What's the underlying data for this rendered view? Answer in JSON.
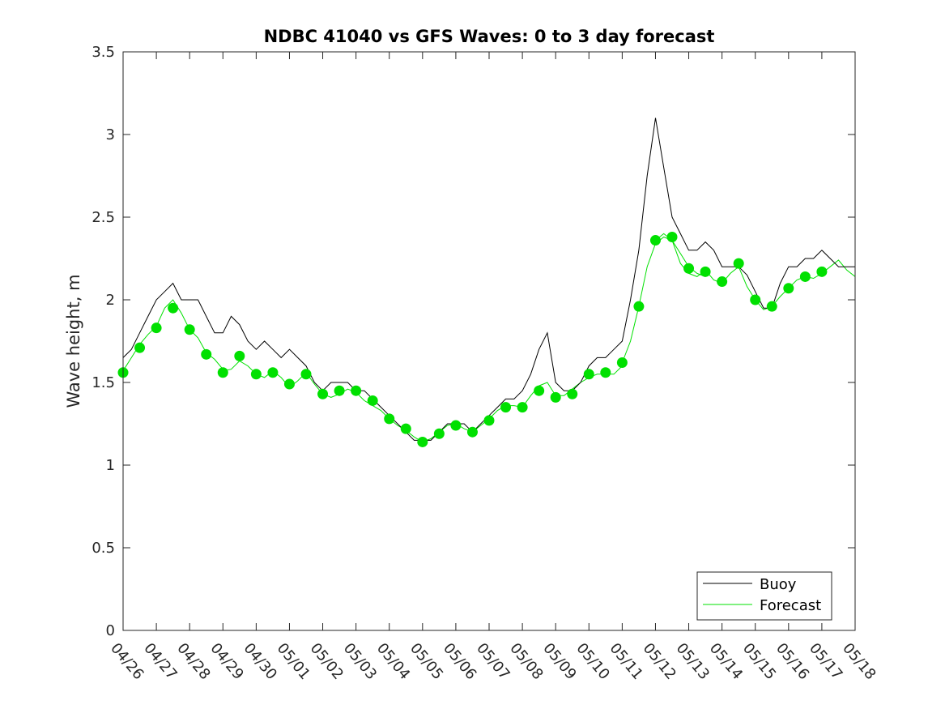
{
  "chart_data": {
    "type": "line",
    "title": "NDBC 41040 vs GFS Waves: 0 to 3 day forecast",
    "xlabel": "",
    "ylabel": "Wave height, m",
    "ylim": [
      0,
      3.5
    ],
    "yticks": [
      0,
      0.5,
      1,
      1.5,
      2,
      2.5,
      3,
      3.5
    ],
    "ytick_labels": [
      "0",
      "0.5",
      "1",
      "1.5",
      "2",
      "2.5",
      "3",
      "3.5"
    ],
    "xlim": [
      0,
      22
    ],
    "xtick_labels": [
      "04/26",
      "04/27",
      "04/28",
      "04/29",
      "04/30",
      "05/01",
      "05/02",
      "05/03",
      "05/04",
      "05/05",
      "05/06",
      "05/07",
      "05/08",
      "05/09",
      "05/10",
      "05/11",
      "05/12",
      "05/13",
      "05/14",
      "05/15",
      "05/16",
      "05/17",
      "05/18"
    ],
    "grid": false,
    "legend_position": "bottom-right",
    "colors": {
      "buoy": "#000000",
      "forecast": "#00e000",
      "axis": "#262626"
    },
    "series": [
      {
        "name": "Buoy",
        "style": "thin-line",
        "x": [
          0.0,
          0.25,
          0.5,
          0.75,
          1.0,
          1.25,
          1.5,
          1.75,
          2.0,
          2.25,
          2.5,
          2.75,
          3.0,
          3.25,
          3.5,
          3.75,
          4.0,
          4.25,
          4.5,
          4.75,
          5.0,
          5.25,
          5.5,
          5.75,
          6.0,
          6.25,
          6.5,
          6.75,
          7.0,
          7.25,
          7.5,
          7.75,
          8.0,
          8.25,
          8.5,
          8.75,
          9.0,
          9.25,
          9.5,
          9.75,
          10.0,
          10.25,
          10.5,
          10.75,
          11.0,
          11.25,
          11.5,
          11.75,
          12.0,
          12.25,
          12.5,
          12.75,
          13.0,
          13.25,
          13.5,
          13.75,
          14.0,
          14.25,
          14.5,
          14.75,
          15.0,
          15.25,
          15.5,
          15.75,
          16.0,
          16.25,
          16.5,
          16.75,
          17.0,
          17.25,
          17.5,
          17.75,
          18.0,
          18.25,
          18.5,
          18.75,
          19.0,
          19.25,
          19.5,
          19.75,
          20.0,
          20.25,
          20.5,
          20.75,
          21.0,
          21.25,
          21.5,
          21.75,
          22.0
        ],
        "values": [
          1.65,
          1.7,
          1.8,
          1.9,
          2.0,
          2.05,
          2.1,
          2.0,
          2.0,
          2.0,
          1.9,
          1.8,
          1.8,
          1.9,
          1.85,
          1.75,
          1.7,
          1.75,
          1.7,
          1.65,
          1.7,
          1.65,
          1.6,
          1.5,
          1.45,
          1.5,
          1.5,
          1.5,
          1.45,
          1.45,
          1.4,
          1.35,
          1.3,
          1.25,
          1.2,
          1.15,
          1.15,
          1.15,
          1.2,
          1.25,
          1.25,
          1.25,
          1.2,
          1.25,
          1.3,
          1.35,
          1.4,
          1.4,
          1.45,
          1.55,
          1.7,
          1.8,
          1.5,
          1.45,
          1.45,
          1.5,
          1.6,
          1.65,
          1.65,
          1.7,
          1.75,
          2.0,
          2.3,
          2.75,
          3.1,
          2.8,
          2.5,
          2.4,
          2.3,
          2.3,
          2.35,
          2.3,
          2.2,
          2.2,
          2.2,
          2.15,
          2.05,
          1.95,
          1.95,
          2.1,
          2.2,
          2.2,
          2.25,
          2.25,
          2.3,
          2.25,
          2.2,
          2.2,
          2.2
        ]
      },
      {
        "name": "Forecast",
        "style": "thin-lines",
        "members": [
          {
            "x": [
              0.0,
              0.25,
              0.5,
              0.75,
              1.0,
              1.25,
              1.5,
              1.75,
              2.0,
              2.25,
              2.5,
              2.75,
              3.0
            ],
            "values": [
              1.57,
              1.65,
              1.73,
              1.79,
              1.84,
              1.95,
              2.0,
              1.92,
              1.82,
              1.77,
              1.68,
              1.64,
              1.58
            ]
          },
          {
            "x": [
              3.0,
              3.25,
              3.5,
              3.75,
              4.0,
              4.25,
              4.5,
              4.75,
              5.0,
              5.25,
              5.5,
              5.75,
              6.0
            ],
            "values": [
              1.57,
              1.58,
              1.63,
              1.6,
              1.55,
              1.53,
              1.57,
              1.53,
              1.47,
              1.51,
              1.56,
              1.49,
              1.43
            ]
          },
          {
            "x": [
              6.0,
              6.25,
              6.5,
              6.75,
              7.0,
              7.25,
              7.5,
              7.75,
              8.0,
              8.25,
              8.5,
              8.75,
              9.0
            ],
            "values": [
              1.43,
              1.41,
              1.43,
              1.46,
              1.44,
              1.39,
              1.36,
              1.33,
              1.28,
              1.24,
              1.21,
              1.17,
              1.14
            ]
          },
          {
            "x": [
              9.0,
              9.25,
              9.5,
              9.75,
              10.0,
              10.25,
              10.5,
              10.75,
              11.0,
              11.25,
              11.5,
              11.75,
              12.0
            ],
            "values": [
              1.14,
              1.16,
              1.2,
              1.24,
              1.25,
              1.22,
              1.2,
              1.24,
              1.28,
              1.33,
              1.36,
              1.36,
              1.35
            ]
          },
          {
            "x": [
              12.0,
              12.25,
              12.5,
              12.75,
              13.0,
              13.25,
              13.5,
              13.75,
              14.0,
              14.25,
              14.5,
              14.75,
              15.0
            ],
            "values": [
              1.35,
              1.42,
              1.48,
              1.5,
              1.42,
              1.42,
              1.46,
              1.5,
              1.53,
              1.55,
              1.55,
              1.55,
              1.6
            ]
          },
          {
            "x": [
              15.0,
              15.25,
              15.5,
              15.75,
              16.0,
              16.25,
              16.5,
              16.75,
              17.0,
              17.25,
              17.5
            ],
            "values": [
              1.62,
              1.75,
              1.96,
              2.2,
              2.34,
              2.38,
              2.36,
              2.28,
              2.2,
              2.16,
              2.14
            ]
          },
          {
            "x": [
              16.0,
              16.25,
              16.5,
              16.75,
              17.0,
              17.25,
              17.5,
              17.75,
              18.0,
              18.25,
              18.5,
              18.75,
              19.0
            ],
            "values": [
              2.36,
              2.4,
              2.36,
              2.22,
              2.16,
              2.14,
              2.18,
              2.12,
              2.1,
              2.16,
              2.2,
              2.08,
              2.0
            ]
          },
          {
            "x": [
              19.0,
              19.25,
              19.5,
              19.75,
              20.0,
              20.25,
              20.5,
              20.75,
              21.0,
              21.25,
              21.5,
              21.75,
              22.0
            ],
            "values": [
              2.0,
              1.94,
              1.96,
              2.02,
              2.07,
              2.12,
              2.14,
              2.13,
              2.16,
              2.2,
              2.24,
              2.18,
              2.14
            ]
          }
        ],
        "points": {
          "x": [
            0.0,
            0.5,
            1.0,
            1.5,
            2.0,
            2.5,
            3.0,
            3.5,
            4.0,
            4.5,
            5.0,
            5.5,
            6.0,
            6.5,
            7.0,
            7.5,
            8.0,
            8.5,
            9.0,
            9.5,
            10.0,
            10.5,
            11.0,
            11.5,
            12.0,
            12.5,
            13.0,
            13.5,
            14.0,
            14.5,
            15.0,
            15.5,
            16.0,
            16.5,
            17.0,
            17.5,
            18.0,
            18.5,
            19.0,
            19.5,
            20.0,
            20.5,
            21.0
          ],
          "values": [
            1.56,
            1.71,
            1.83,
            1.95,
            1.82,
            1.67,
            1.56,
            1.66,
            1.55,
            1.56,
            1.49,
            1.55,
            1.43,
            1.45,
            1.45,
            1.39,
            1.28,
            1.22,
            1.14,
            1.19,
            1.24,
            1.2,
            1.27,
            1.35,
            1.35,
            1.45,
            1.41,
            1.43,
            1.55,
            1.56,
            1.62,
            1.96,
            2.36,
            2.38,
            2.19,
            2.17,
            2.11,
            2.22,
            2.0,
            1.96,
            2.07,
            2.14,
            2.17
          ]
        }
      }
    ],
    "legend": [
      "Buoy",
      "Forecast"
    ]
  }
}
